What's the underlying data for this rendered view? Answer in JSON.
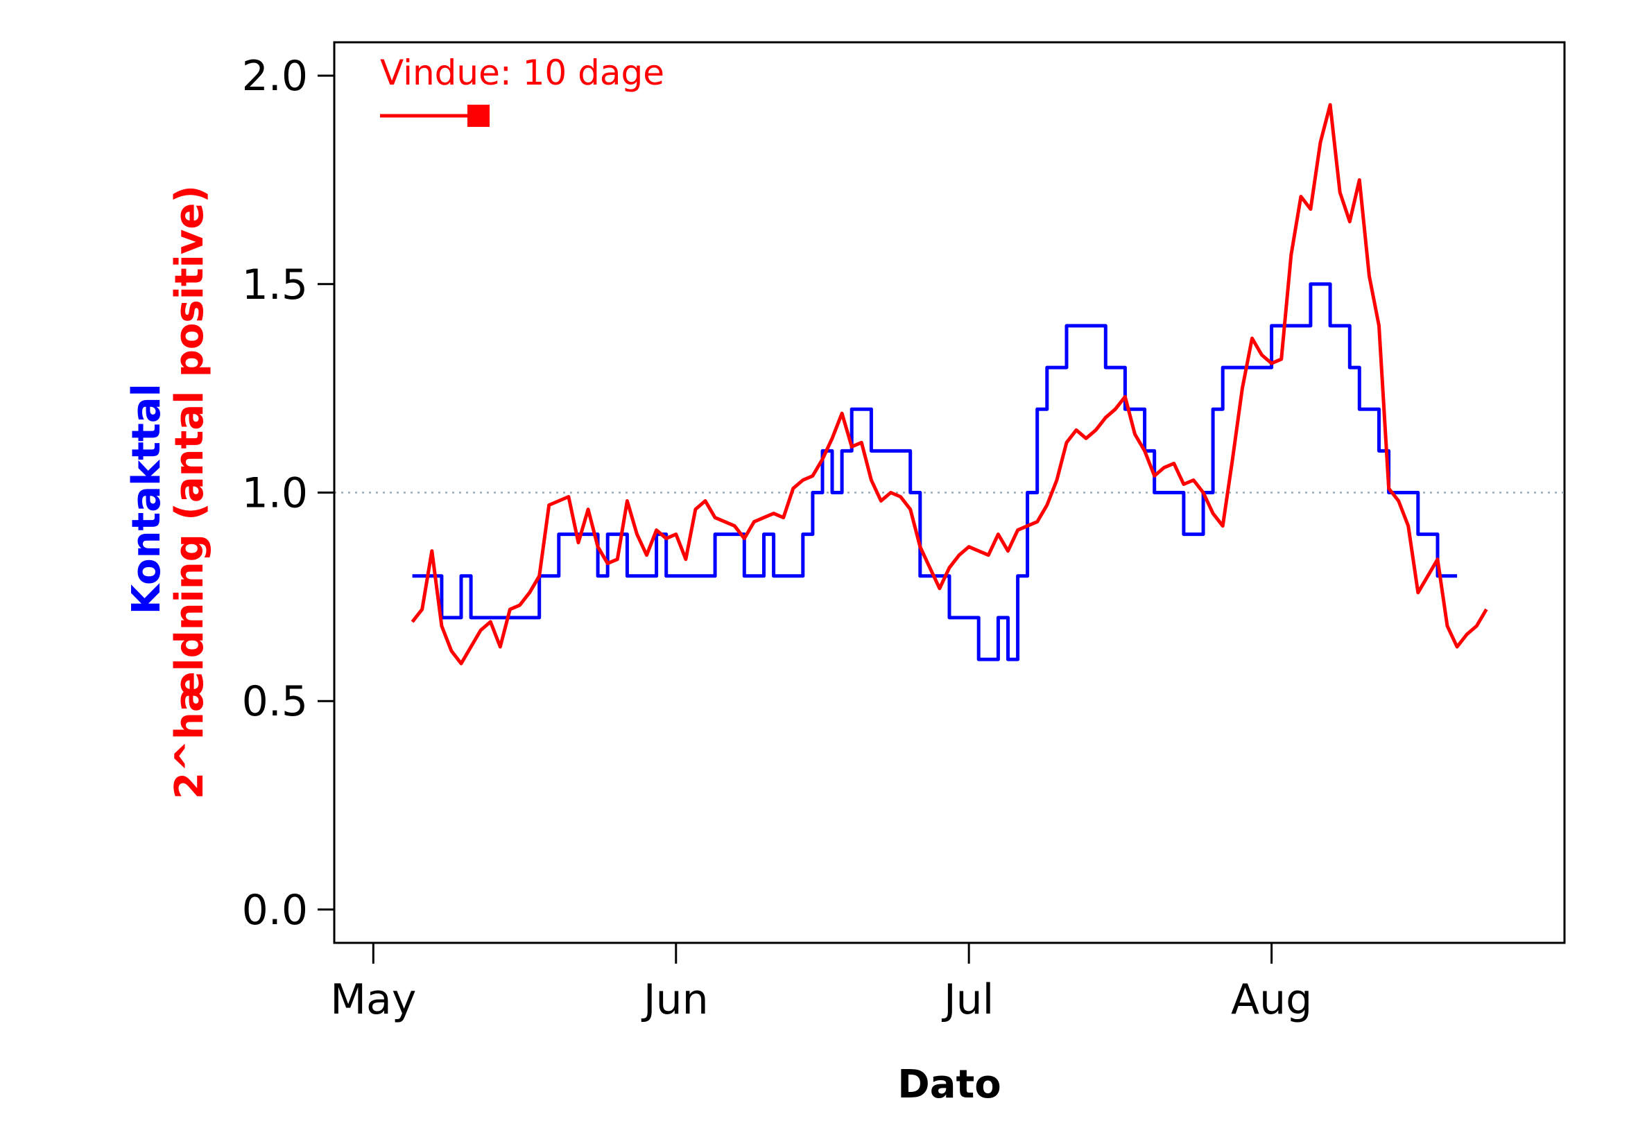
{
  "chart_data": {
    "type": "line",
    "xlabel": "Dato",
    "ylabel_parts": [
      {
        "text": "Kontakttal",
        "color": "#0000ff"
      },
      {
        "text": "2^hældning (antal positive)",
        "color": "#ff0000"
      }
    ],
    "ylim": [
      -0.08,
      2.08
    ],
    "yticks": [
      0.0,
      0.5,
      1.0,
      1.5,
      2.0
    ],
    "ytick_labels": [
      "0.0",
      "0.5",
      "1.0",
      "1.5",
      "2.0"
    ],
    "x_date_range": [
      "2020-04-27",
      "2020-08-31"
    ],
    "xticks": [
      {
        "label": "May",
        "date": "2020-05-01"
      },
      {
        "label": "Jun",
        "date": "2020-06-01"
      },
      {
        "label": "Jul",
        "date": "2020-07-01"
      },
      {
        "label": "Aug",
        "date": "2020-08-01"
      }
    ],
    "reference_line": {
      "y": 1.0,
      "style": "dotted",
      "color": "#9aa8b5"
    },
    "legend": {
      "text": "Vindue: 10 dage",
      "color": "#ff0000",
      "placement": "top-left"
    },
    "grid": false,
    "series": [
      {
        "name": "Kontakttal",
        "color": "#0000ff",
        "step": true,
        "points": [
          [
            "2020-05-05",
            0.8
          ],
          [
            "2020-05-06",
            0.8
          ],
          [
            "2020-05-07",
            0.8
          ],
          [
            "2020-05-08",
            0.7
          ],
          [
            "2020-05-09",
            0.7
          ],
          [
            "2020-05-10",
            0.8
          ],
          [
            "2020-05-11",
            0.7
          ],
          [
            "2020-05-12",
            0.7
          ],
          [
            "2020-05-13",
            0.7
          ],
          [
            "2020-05-14",
            0.7
          ],
          [
            "2020-05-15",
            0.7
          ],
          [
            "2020-05-16",
            0.7
          ],
          [
            "2020-05-17",
            0.7
          ],
          [
            "2020-05-18",
            0.8
          ],
          [
            "2020-05-19",
            0.8
          ],
          [
            "2020-05-20",
            0.9
          ],
          [
            "2020-05-21",
            0.9
          ],
          [
            "2020-05-22",
            0.9
          ],
          [
            "2020-05-23",
            0.9
          ],
          [
            "2020-05-24",
            0.8
          ],
          [
            "2020-05-25",
            0.9
          ],
          [
            "2020-05-26",
            0.9
          ],
          [
            "2020-05-27",
            0.8
          ],
          [
            "2020-05-28",
            0.8
          ],
          [
            "2020-05-29",
            0.8
          ],
          [
            "2020-05-30",
            0.9
          ],
          [
            "2020-05-31",
            0.8
          ],
          [
            "2020-06-01",
            0.8
          ],
          [
            "2020-06-02",
            0.8
          ],
          [
            "2020-06-03",
            0.8
          ],
          [
            "2020-06-04",
            0.8
          ],
          [
            "2020-06-05",
            0.9
          ],
          [
            "2020-06-06",
            0.9
          ],
          [
            "2020-06-07",
            0.9
          ],
          [
            "2020-06-08",
            0.8
          ],
          [
            "2020-06-09",
            0.8
          ],
          [
            "2020-06-10",
            0.9
          ],
          [
            "2020-06-11",
            0.8
          ],
          [
            "2020-06-12",
            0.8
          ],
          [
            "2020-06-13",
            0.8
          ],
          [
            "2020-06-14",
            0.9
          ],
          [
            "2020-06-15",
            1.0
          ],
          [
            "2020-06-16",
            1.1
          ],
          [
            "2020-06-17",
            1.0
          ],
          [
            "2020-06-18",
            1.1
          ],
          [
            "2020-06-19",
            1.2
          ],
          [
            "2020-06-20",
            1.2
          ],
          [
            "2020-06-21",
            1.1
          ],
          [
            "2020-06-22",
            1.1
          ],
          [
            "2020-06-23",
            1.1
          ],
          [
            "2020-06-24",
            1.1
          ],
          [
            "2020-06-25",
            1.0
          ],
          [
            "2020-06-26",
            0.8
          ],
          [
            "2020-06-27",
            0.8
          ],
          [
            "2020-06-28",
            0.8
          ],
          [
            "2020-06-29",
            0.7
          ],
          [
            "2020-06-30",
            0.7
          ],
          [
            "2020-07-01",
            0.7
          ],
          [
            "2020-07-02",
            0.6
          ],
          [
            "2020-07-03",
            0.6
          ],
          [
            "2020-07-04",
            0.7
          ],
          [
            "2020-07-05",
            0.6
          ],
          [
            "2020-07-06",
            0.8
          ],
          [
            "2020-07-07",
            1.0
          ],
          [
            "2020-07-08",
            1.2
          ],
          [
            "2020-07-09",
            1.3
          ],
          [
            "2020-07-10",
            1.3
          ],
          [
            "2020-07-11",
            1.4
          ],
          [
            "2020-07-12",
            1.4
          ],
          [
            "2020-07-13",
            1.4
          ],
          [
            "2020-07-14",
            1.4
          ],
          [
            "2020-07-15",
            1.3
          ],
          [
            "2020-07-16",
            1.3
          ],
          [
            "2020-07-17",
            1.2
          ],
          [
            "2020-07-18",
            1.2
          ],
          [
            "2020-07-19",
            1.1
          ],
          [
            "2020-07-20",
            1.0
          ],
          [
            "2020-07-21",
            1.0
          ],
          [
            "2020-07-22",
            1.0
          ],
          [
            "2020-07-23",
            0.9
          ],
          [
            "2020-07-24",
            0.9
          ],
          [
            "2020-07-25",
            1.0
          ],
          [
            "2020-07-26",
            1.2
          ],
          [
            "2020-07-27",
            1.3
          ],
          [
            "2020-07-28",
            1.3
          ],
          [
            "2020-07-29",
            1.3
          ],
          [
            "2020-07-30",
            1.3
          ],
          [
            "2020-07-31",
            1.3
          ],
          [
            "2020-08-01",
            1.4
          ],
          [
            "2020-08-02",
            1.4
          ],
          [
            "2020-08-03",
            1.4
          ],
          [
            "2020-08-04",
            1.4
          ],
          [
            "2020-08-05",
            1.5
          ],
          [
            "2020-08-06",
            1.5
          ],
          [
            "2020-08-07",
            1.4
          ],
          [
            "2020-08-08",
            1.4
          ],
          [
            "2020-08-09",
            1.3
          ],
          [
            "2020-08-10",
            1.2
          ],
          [
            "2020-08-11",
            1.2
          ],
          [
            "2020-08-12",
            1.1
          ],
          [
            "2020-08-13",
            1.0
          ],
          [
            "2020-08-14",
            1.0
          ],
          [
            "2020-08-15",
            1.0
          ],
          [
            "2020-08-16",
            0.9
          ],
          [
            "2020-08-17",
            0.9
          ],
          [
            "2020-08-18",
            0.8
          ],
          [
            "2020-08-19",
            0.8
          ],
          [
            "2020-08-20",
            0.8
          ]
        ]
      },
      {
        "name": "2^hældning (antal positive)",
        "color": "#ff0000",
        "step": false,
        "points": [
          [
            "2020-05-05",
            0.69
          ],
          [
            "2020-05-06",
            0.72
          ],
          [
            "2020-05-07",
            0.86
          ],
          [
            "2020-05-08",
            0.68
          ],
          [
            "2020-05-09",
            0.62
          ],
          [
            "2020-05-10",
            0.59
          ],
          [
            "2020-05-11",
            0.63
          ],
          [
            "2020-05-12",
            0.67
          ],
          [
            "2020-05-13",
            0.69
          ],
          [
            "2020-05-14",
            0.63
          ],
          [
            "2020-05-15",
            0.72
          ],
          [
            "2020-05-16",
            0.73
          ],
          [
            "2020-05-17",
            0.76
          ],
          [
            "2020-05-18",
            0.8
          ],
          [
            "2020-05-19",
            0.97
          ],
          [
            "2020-05-20",
            0.98
          ],
          [
            "2020-05-21",
            0.99
          ],
          [
            "2020-05-22",
            0.88
          ],
          [
            "2020-05-23",
            0.96
          ],
          [
            "2020-05-24",
            0.87
          ],
          [
            "2020-05-25",
            0.83
          ],
          [
            "2020-05-26",
            0.84
          ],
          [
            "2020-05-27",
            0.98
          ],
          [
            "2020-05-28",
            0.9
          ],
          [
            "2020-05-29",
            0.85
          ],
          [
            "2020-05-30",
            0.91
          ],
          [
            "2020-05-31",
            0.89
          ],
          [
            "2020-06-01",
            0.9
          ],
          [
            "2020-06-02",
            0.84
          ],
          [
            "2020-06-03",
            0.96
          ],
          [
            "2020-06-04",
            0.98
          ],
          [
            "2020-06-05",
            0.94
          ],
          [
            "2020-06-06",
            0.93
          ],
          [
            "2020-06-07",
            0.92
          ],
          [
            "2020-06-08",
            0.89
          ],
          [
            "2020-06-09",
            0.93
          ],
          [
            "2020-06-10",
            0.94
          ],
          [
            "2020-06-11",
            0.95
          ],
          [
            "2020-06-12",
            0.94
          ],
          [
            "2020-06-13",
            1.01
          ],
          [
            "2020-06-14",
            1.03
          ],
          [
            "2020-06-15",
            1.04
          ],
          [
            "2020-06-16",
            1.08
          ],
          [
            "2020-06-17",
            1.13
          ],
          [
            "2020-06-18",
            1.19
          ],
          [
            "2020-06-19",
            1.11
          ],
          [
            "2020-06-20",
            1.12
          ],
          [
            "2020-06-21",
            1.03
          ],
          [
            "2020-06-22",
            0.98
          ],
          [
            "2020-06-23",
            1.0
          ],
          [
            "2020-06-24",
            0.99
          ],
          [
            "2020-06-25",
            0.96
          ],
          [
            "2020-06-26",
            0.87
          ],
          [
            "2020-06-27",
            0.82
          ],
          [
            "2020-06-28",
            0.77
          ],
          [
            "2020-06-29",
            0.82
          ],
          [
            "2020-06-30",
            0.85
          ],
          [
            "2020-07-01",
            0.87
          ],
          [
            "2020-07-02",
            0.86
          ],
          [
            "2020-07-03",
            0.85
          ],
          [
            "2020-07-04",
            0.9
          ],
          [
            "2020-07-05",
            0.86
          ],
          [
            "2020-07-06",
            0.91
          ],
          [
            "2020-07-07",
            0.92
          ],
          [
            "2020-07-08",
            0.93
          ],
          [
            "2020-07-09",
            0.97
          ],
          [
            "2020-07-10",
            1.03
          ],
          [
            "2020-07-11",
            1.12
          ],
          [
            "2020-07-12",
            1.15
          ],
          [
            "2020-07-13",
            1.13
          ],
          [
            "2020-07-14",
            1.15
          ],
          [
            "2020-07-15",
            1.18
          ],
          [
            "2020-07-16",
            1.2
          ],
          [
            "2020-07-17",
            1.23
          ],
          [
            "2020-07-18",
            1.14
          ],
          [
            "2020-07-19",
            1.1
          ],
          [
            "2020-07-20",
            1.04
          ],
          [
            "2020-07-21",
            1.06
          ],
          [
            "2020-07-22",
            1.07
          ],
          [
            "2020-07-23",
            1.02
          ],
          [
            "2020-07-24",
            1.03
          ],
          [
            "2020-07-25",
            1.0
          ],
          [
            "2020-07-26",
            0.95
          ],
          [
            "2020-07-27",
            0.92
          ],
          [
            "2020-07-28",
            1.08
          ],
          [
            "2020-07-29",
            1.25
          ],
          [
            "2020-07-30",
            1.37
          ],
          [
            "2020-07-31",
            1.33
          ],
          [
            "2020-08-01",
            1.31
          ],
          [
            "2020-08-02",
            1.32
          ],
          [
            "2020-08-03",
            1.57
          ],
          [
            "2020-08-04",
            1.71
          ],
          [
            "2020-08-05",
            1.68
          ],
          [
            "2020-08-06",
            1.84
          ],
          [
            "2020-08-07",
            1.93
          ],
          [
            "2020-08-08",
            1.72
          ],
          [
            "2020-08-09",
            1.65
          ],
          [
            "2020-08-10",
            1.75
          ],
          [
            "2020-08-11",
            1.52
          ],
          [
            "2020-08-12",
            1.4
          ],
          [
            "2020-08-13",
            1.01
          ],
          [
            "2020-08-14",
            0.98
          ],
          [
            "2020-08-15",
            0.92
          ],
          [
            "2020-08-16",
            0.76
          ],
          [
            "2020-08-17",
            0.8
          ],
          [
            "2020-08-18",
            0.84
          ],
          [
            "2020-08-19",
            0.68
          ],
          [
            "2020-08-20",
            0.63
          ],
          [
            "2020-08-21",
            0.66
          ],
          [
            "2020-08-22",
            0.68
          ],
          [
            "2020-08-23",
            0.72
          ]
        ]
      }
    ]
  }
}
